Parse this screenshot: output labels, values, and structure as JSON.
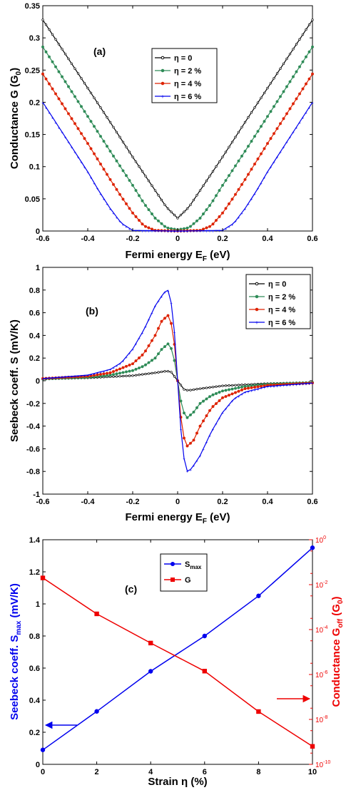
{
  "chart_data": [
    {
      "type": "line",
      "panel_label": "(a)",
      "xlabel_main": "Fermi energy E",
      "xlabel_sub": "F",
      "xlabel_tail": " (eV)",
      "ylabel_main": "Conductance G (G",
      "ylabel_sub": "0",
      "ylabel_tail": ")",
      "xlim": [
        -0.6,
        0.6
      ],
      "ylim": [
        0,
        0.35
      ],
      "xticks": [
        "-0.6",
        "-0.4",
        "-0.2",
        "0",
        "0.2",
        "0.4",
        "0.6"
      ],
      "yticks": [
        "0",
        "0.05",
        "0.1",
        "0.15",
        "0.2",
        "0.25",
        "0.3",
        "0.35"
      ],
      "legend_position": "top-right",
      "series": [
        {
          "name": "η = 0",
          "color": "#000000",
          "x": [
            -0.6,
            -0.5,
            -0.4,
            -0.3,
            -0.2,
            -0.1,
            -0.05,
            0,
            0.05,
            0.1,
            0.2,
            0.3,
            0.4,
            0.5,
            0.6
          ],
          "y": [
            0.328,
            0.275,
            0.222,
            0.169,
            0.115,
            0.063,
            0.037,
            0.02,
            0.037,
            0.063,
            0.115,
            0.169,
            0.222,
            0.275,
            0.328
          ]
        },
        {
          "name": "η = 2 %",
          "color": "#2e8b57",
          "x": [
            -0.6,
            -0.5,
            -0.4,
            -0.3,
            -0.2,
            -0.15,
            -0.1,
            -0.05,
            0,
            0.05,
            0.1,
            0.15,
            0.2,
            0.3,
            0.4,
            0.5,
            0.6
          ],
          "y": [
            0.286,
            0.232,
            0.178,
            0.124,
            0.071,
            0.043,
            0.02,
            0.005,
            0.002,
            0.005,
            0.02,
            0.043,
            0.071,
            0.124,
            0.178,
            0.232,
            0.286
          ]
        },
        {
          "name": "η = 4 %",
          "color": "#dd2200",
          "x": [
            -0.6,
            -0.5,
            -0.4,
            -0.3,
            -0.25,
            -0.2,
            -0.15,
            -0.1,
            0,
            0.1,
            0.15,
            0.2,
            0.25,
            0.3,
            0.4,
            0.5,
            0.6
          ],
          "y": [
            0.244,
            0.19,
            0.136,
            0.08,
            0.053,
            0.028,
            0.008,
            0.001,
            0.0,
            0.001,
            0.008,
            0.028,
            0.053,
            0.08,
            0.136,
            0.19,
            0.244
          ]
        },
        {
          "name": "η = 6 %",
          "color": "#0000ee",
          "x": [
            -0.6,
            -0.5,
            -0.4,
            -0.35,
            -0.3,
            -0.25,
            -0.2,
            0,
            0.2,
            0.25,
            0.3,
            0.35,
            0.4,
            0.5,
            0.6
          ],
          "y": [
            0.2,
            0.146,
            0.092,
            0.062,
            0.035,
            0.012,
            0.001,
            0.0,
            0.001,
            0.012,
            0.035,
            0.062,
            0.092,
            0.146,
            0.2
          ]
        }
      ]
    },
    {
      "type": "line",
      "panel_label": "(b)",
      "xlabel_main": "Fermi energy E",
      "xlabel_sub": "F",
      "xlabel_tail": " (eV)",
      "ylabel_main": "Seebeck coeff. S (mV/K)",
      "xlim": [
        -0.6,
        0.6
      ],
      "ylim": [
        -1,
        1
      ],
      "xticks": [
        "-0.6",
        "-0.4",
        "-0.2",
        "0",
        "0.2",
        "0.4",
        "0.6"
      ],
      "yticks": [
        "-1",
        "-0.8",
        "-0.6",
        "-0.4",
        "-0.2",
        "0",
        "0.2",
        "0.4",
        "0.6",
        "0.8",
        "1"
      ],
      "legend_position": "top-right",
      "series": [
        {
          "name": "η = 0",
          "color": "#000000",
          "x": [
            -0.6,
            -0.4,
            -0.2,
            -0.1,
            -0.05,
            -0.03,
            0,
            0.03,
            0.05,
            0.1,
            0.2,
            0.4,
            0.6
          ],
          "y": [
            0.015,
            0.025,
            0.045,
            0.07,
            0.085,
            0.08,
            0.0,
            -0.08,
            -0.085,
            -0.07,
            -0.045,
            -0.025,
            -0.015
          ]
        },
        {
          "name": "η = 2 %",
          "color": "#2e8b57",
          "x": [
            -0.6,
            -0.4,
            -0.3,
            -0.2,
            -0.15,
            -0.1,
            -0.07,
            -0.04,
            -0.02,
            0,
            0.02,
            0.04,
            0.07,
            0.1,
            0.15,
            0.2,
            0.3,
            0.4,
            0.6
          ],
          "y": [
            0.015,
            0.03,
            0.05,
            0.09,
            0.13,
            0.2,
            0.28,
            0.33,
            0.25,
            0.0,
            -0.25,
            -0.33,
            -0.28,
            -0.2,
            -0.13,
            -0.09,
            -0.05,
            -0.03,
            -0.015
          ]
        },
        {
          "name": "η = 4 %",
          "color": "#dd2200",
          "x": [
            -0.6,
            -0.4,
            -0.3,
            -0.2,
            -0.15,
            -0.1,
            -0.07,
            -0.04,
            -0.02,
            0,
            0.02,
            0.04,
            0.07,
            0.1,
            0.15,
            0.2,
            0.3,
            0.4,
            0.6
          ],
          "y": [
            0.02,
            0.04,
            0.07,
            0.15,
            0.24,
            0.4,
            0.53,
            0.58,
            0.45,
            0.0,
            -0.45,
            -0.58,
            -0.53,
            -0.4,
            -0.24,
            -0.15,
            -0.07,
            -0.04,
            -0.02
          ]
        },
        {
          "name": "η = 6 %",
          "color": "#0000ee",
          "x": [
            -0.6,
            -0.4,
            -0.3,
            -0.25,
            -0.2,
            -0.15,
            -0.1,
            -0.06,
            -0.04,
            -0.02,
            0,
            0.02,
            0.04,
            0.06,
            0.1,
            0.15,
            0.2,
            0.25,
            0.3,
            0.4,
            0.6
          ],
          "y": [
            0.02,
            0.05,
            0.1,
            0.16,
            0.28,
            0.45,
            0.66,
            0.78,
            0.8,
            0.6,
            0.0,
            -0.6,
            -0.8,
            -0.78,
            -0.66,
            -0.45,
            -0.28,
            -0.16,
            -0.1,
            -0.05,
            -0.02
          ]
        }
      ]
    },
    {
      "type": "line",
      "panel_label": "(c)",
      "xlabel_main": "Strain η (%)",
      "ylabel_main": "Seebeck coeff. S",
      "ylabel_sub": "max",
      "ylabel_tail": " (mV/K)",
      "y2label_main": "Conductance G",
      "y2label_sub": "off",
      "y2label_tail": " (G",
      "y2label_sub2": "0",
      "y2label_end": ")",
      "xlim": [
        0,
        10
      ],
      "ylim": [
        0,
        1.4
      ],
      "y2lim_log10": [
        -10,
        0
      ],
      "y2_scale": "log",
      "xticks": [
        "0",
        "2",
        "4",
        "6",
        "8",
        "10"
      ],
      "yticks": [
        "0",
        "0.2",
        "0.4",
        "0.6",
        "0.8",
        "1",
        "1.2",
        "1.4"
      ],
      "y2tick_base": "10",
      "y2tick_exps": [
        "-10",
        "-8",
        "-6",
        "-4",
        "-2",
        "0"
      ],
      "legend_position": "top-center",
      "left_color": "#0000ee",
      "right_color": "#ee0000",
      "series": [
        {
          "name_main": "S",
          "name_sub": "max",
          "color": "#0000ee",
          "axis": "left",
          "x": [
            0,
            2,
            4,
            6,
            8,
            10
          ],
          "y": [
            0.09,
            0.33,
            0.58,
            0.8,
            1.05,
            1.35
          ]
        },
        {
          "name_main": "G",
          "name_sub": "",
          "color": "#ee0000",
          "axis": "right",
          "x": [
            0,
            2,
            4,
            6,
            8,
            10
          ],
          "y_log10": [
            -1.7,
            -3.3,
            -4.6,
            -5.85,
            -7.65,
            -9.2
          ]
        }
      ]
    }
  ]
}
